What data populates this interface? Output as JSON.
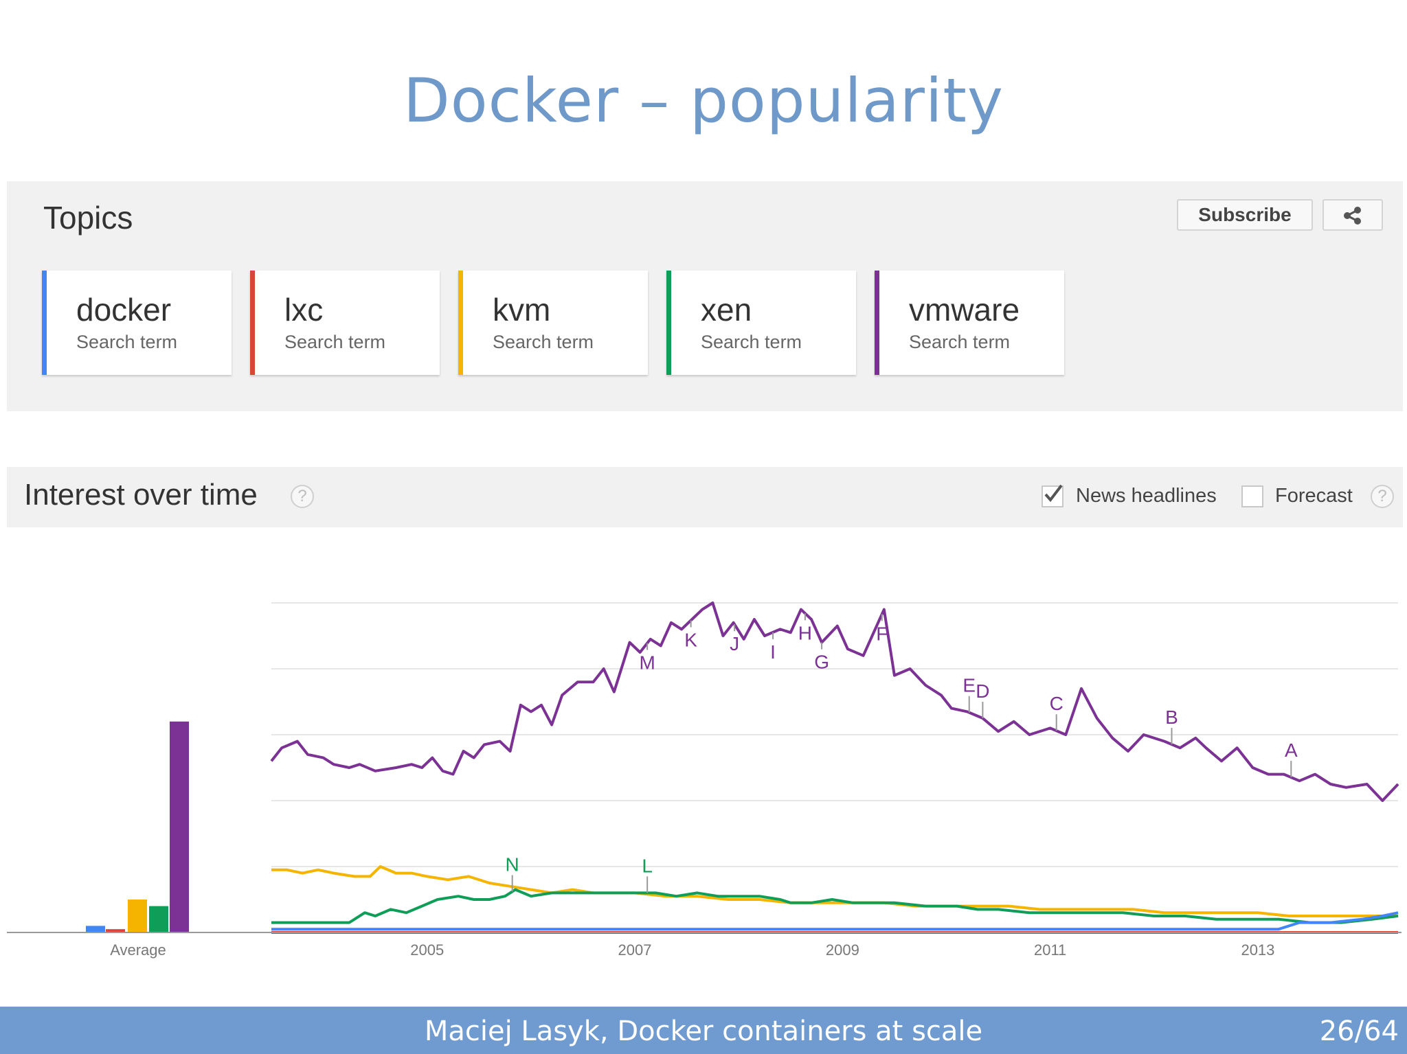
{
  "slide": {
    "title": "Docker – popularity",
    "footer": "Maciej Lasyk, Docker containers at scale",
    "page": "26/64"
  },
  "topics": {
    "heading": "Topics",
    "subscribe_label": "Subscribe",
    "share_icon": "share-icon",
    "terms": [
      {
        "name": "docker",
        "type": "Search term",
        "color": "#4285f4"
      },
      {
        "name": "lxc",
        "type": "Search term",
        "color": "#db4437"
      },
      {
        "name": "kvm",
        "type": "Search term",
        "color": "#f4b400"
      },
      {
        "name": "xen",
        "type": "Search term",
        "color": "#0f9d58"
      },
      {
        "name": "vmware",
        "type": "Search term",
        "color": "#7b3294"
      }
    ]
  },
  "interest": {
    "heading": "Interest over time",
    "help_icon": "?",
    "news_label": "News headlines",
    "news_checked": true,
    "forecast_label": "Forecast",
    "forecast_checked": false
  },
  "chart_data": {
    "type": "line",
    "x_range": [
      2004.0,
      2014.85
    ],
    "y_range": [
      0,
      100
    ],
    "grid": true,
    "x_ticks": [
      2005,
      2007,
      2009,
      2011,
      2013
    ],
    "average_label": "Average",
    "averages": [
      {
        "name": "docker",
        "value": 2,
        "color": "#4285f4"
      },
      {
        "name": "lxc",
        "value": 1,
        "color": "#db4437"
      },
      {
        "name": "kvm",
        "value": 10,
        "color": "#f4b400"
      },
      {
        "name": "xen",
        "value": 8,
        "color": "#0f9d58"
      },
      {
        "name": "vmware",
        "value": 64,
        "color": "#7b3294"
      }
    ],
    "series": [
      {
        "name": "vmware",
        "color": "#7b3294",
        "points": [
          [
            2004.0,
            52
          ],
          [
            2004.1,
            56
          ],
          [
            2004.25,
            58
          ],
          [
            2004.35,
            54
          ],
          [
            2004.5,
            53
          ],
          [
            2004.6,
            51
          ],
          [
            2004.75,
            50
          ],
          [
            2004.85,
            51
          ],
          [
            2005.0,
            49
          ],
          [
            2005.2,
            50
          ],
          [
            2005.35,
            51
          ],
          [
            2005.45,
            50
          ],
          [
            2005.55,
            53
          ],
          [
            2005.65,
            49
          ],
          [
            2005.75,
            48
          ],
          [
            2005.85,
            55
          ],
          [
            2005.95,
            53
          ],
          [
            2006.05,
            57
          ],
          [
            2006.2,
            58
          ],
          [
            2006.3,
            55
          ],
          [
            2006.4,
            69
          ],
          [
            2006.5,
            67
          ],
          [
            2006.6,
            69
          ],
          [
            2006.7,
            63
          ],
          [
            2006.8,
            72
          ],
          [
            2006.95,
            76
          ],
          [
            2007.1,
            76
          ],
          [
            2007.2,
            80
          ],
          [
            2007.3,
            73
          ],
          [
            2007.45,
            88
          ],
          [
            2007.55,
            85
          ],
          [
            2007.65,
            89
          ],
          [
            2007.75,
            87
          ],
          [
            2007.85,
            94
          ],
          [
            2007.95,
            92
          ],
          [
            2008.05,
            95
          ],
          [
            2008.15,
            98
          ],
          [
            2008.25,
            100
          ],
          [
            2008.35,
            90
          ],
          [
            2008.45,
            94
          ],
          [
            2008.55,
            89
          ],
          [
            2008.65,
            95
          ],
          [
            2008.75,
            90
          ],
          [
            2008.9,
            92
          ],
          [
            2009.0,
            91
          ],
          [
            2009.1,
            98
          ],
          [
            2009.2,
            95
          ],
          [
            2009.3,
            88
          ],
          [
            2009.45,
            93
          ],
          [
            2009.55,
            86
          ],
          [
            2009.7,
            84
          ],
          [
            2009.9,
            98
          ],
          [
            2010.0,
            78
          ],
          [
            2010.15,
            80
          ],
          [
            2010.3,
            75
          ],
          [
            2010.45,
            72
          ],
          [
            2010.55,
            68
          ],
          [
            2010.7,
            67
          ],
          [
            2010.85,
            65
          ],
          [
            2011.0,
            61
          ],
          [
            2011.15,
            64
          ],
          [
            2011.3,
            60
          ],
          [
            2011.5,
            62
          ],
          [
            2011.65,
            60
          ],
          [
            2011.8,
            74
          ],
          [
            2011.95,
            65
          ],
          [
            2012.1,
            59
          ],
          [
            2012.25,
            55
          ],
          [
            2012.4,
            60
          ],
          [
            2012.6,
            58
          ],
          [
            2012.75,
            56
          ],
          [
            2012.9,
            59
          ],
          [
            2013.0,
            56
          ],
          [
            2013.15,
            52
          ],
          [
            2013.3,
            56
          ],
          [
            2013.45,
            50
          ],
          [
            2013.6,
            48
          ],
          [
            2013.75,
            48
          ],
          [
            2013.9,
            46
          ],
          [
            2014.05,
            48
          ],
          [
            2014.2,
            45
          ],
          [
            2014.35,
            44
          ],
          [
            2014.55,
            45
          ],
          [
            2014.7,
            40
          ],
          [
            2014.85,
            45
          ]
        ]
      },
      {
        "name": "kvm",
        "color": "#f4b400",
        "points": [
          [
            2004.0,
            19
          ],
          [
            2004.15,
            19
          ],
          [
            2004.3,
            18
          ],
          [
            2004.45,
            19
          ],
          [
            2004.6,
            18
          ],
          [
            2004.8,
            17
          ],
          [
            2004.95,
            17
          ],
          [
            2005.05,
            20
          ],
          [
            2005.2,
            18
          ],
          [
            2005.35,
            18
          ],
          [
            2005.5,
            17
          ],
          [
            2005.7,
            16
          ],
          [
            2005.9,
            17
          ],
          [
            2006.1,
            15
          ],
          [
            2006.3,
            14
          ],
          [
            2006.5,
            13
          ],
          [
            2006.7,
            12
          ],
          [
            2006.9,
            13
          ],
          [
            2007.1,
            12
          ],
          [
            2007.3,
            12
          ],
          [
            2007.5,
            12
          ],
          [
            2007.8,
            11
          ],
          [
            2008.1,
            11
          ],
          [
            2008.4,
            10
          ],
          [
            2008.7,
            10
          ],
          [
            2009.0,
            9
          ],
          [
            2009.3,
            9
          ],
          [
            2009.6,
            9
          ],
          [
            2009.9,
            9
          ],
          [
            2010.2,
            8
          ],
          [
            2010.5,
            8
          ],
          [
            2010.8,
            8
          ],
          [
            2011.1,
            8
          ],
          [
            2011.4,
            7
          ],
          [
            2011.7,
            7
          ],
          [
            2012.0,
            7
          ],
          [
            2012.3,
            7
          ],
          [
            2012.6,
            6
          ],
          [
            2012.9,
            6
          ],
          [
            2013.2,
            6
          ],
          [
            2013.5,
            6
          ],
          [
            2013.8,
            5
          ],
          [
            2014.1,
            5
          ],
          [
            2014.4,
            5
          ],
          [
            2014.85,
            5
          ]
        ]
      },
      {
        "name": "xen",
        "color": "#0f9d58",
        "points": [
          [
            2004.0,
            3
          ],
          [
            2004.3,
            3
          ],
          [
            2004.6,
            3
          ],
          [
            2004.75,
            3
          ],
          [
            2004.9,
            6
          ],
          [
            2005.0,
            5
          ],
          [
            2005.15,
            7
          ],
          [
            2005.3,
            6
          ],
          [
            2005.45,
            8
          ],
          [
            2005.6,
            10
          ],
          [
            2005.8,
            11
          ],
          [
            2005.95,
            10
          ],
          [
            2006.1,
            10
          ],
          [
            2006.25,
            11
          ],
          [
            2006.35,
            13
          ],
          [
            2006.5,
            11
          ],
          [
            2006.7,
            12
          ],
          [
            2006.9,
            12
          ],
          [
            2007.1,
            12
          ],
          [
            2007.3,
            12
          ],
          [
            2007.5,
            12
          ],
          [
            2007.7,
            12
          ],
          [
            2007.9,
            11
          ],
          [
            2008.1,
            12
          ],
          [
            2008.3,
            11
          ],
          [
            2008.5,
            11
          ],
          [
            2008.7,
            11
          ],
          [
            2008.9,
            10
          ],
          [
            2009.0,
            9
          ],
          [
            2009.2,
            9
          ],
          [
            2009.4,
            10
          ],
          [
            2009.6,
            9
          ],
          [
            2009.8,
            9
          ],
          [
            2010.0,
            9
          ],
          [
            2010.3,
            8
          ],
          [
            2010.6,
            8
          ],
          [
            2010.8,
            7
          ],
          [
            2011.0,
            7
          ],
          [
            2011.3,
            6
          ],
          [
            2011.6,
            6
          ],
          [
            2011.9,
            6
          ],
          [
            2012.2,
            6
          ],
          [
            2012.5,
            5
          ],
          [
            2012.8,
            5
          ],
          [
            2013.1,
            4
          ],
          [
            2013.4,
            4
          ],
          [
            2013.7,
            4
          ],
          [
            2014.0,
            3
          ],
          [
            2014.3,
            3
          ],
          [
            2014.6,
            4
          ],
          [
            2014.85,
            5
          ]
        ]
      },
      {
        "name": "docker",
        "color": "#4285f4",
        "points": [
          [
            2004.0,
            1
          ],
          [
            2005.0,
            1
          ],
          [
            2007.0,
            1
          ],
          [
            2009.0,
            1
          ],
          [
            2011.0,
            1
          ],
          [
            2013.0,
            1
          ],
          [
            2013.7,
            1
          ],
          [
            2013.9,
            3
          ],
          [
            2014.2,
            3
          ],
          [
            2014.5,
            4
          ],
          [
            2014.7,
            5
          ],
          [
            2014.85,
            6
          ]
        ]
      },
      {
        "name": "lxc",
        "color": "#db4437",
        "points": [
          [
            2004.0,
            0
          ],
          [
            2014.85,
            0
          ]
        ]
      }
    ],
    "annotations": [
      {
        "label": "A",
        "x": 2013.82,
        "series": "vmware"
      },
      {
        "label": "B",
        "x": 2012.67,
        "series": "vmware"
      },
      {
        "label": "C",
        "x": 2011.56,
        "series": "vmware"
      },
      {
        "label": "D",
        "x": 2010.85,
        "series": "vmware"
      },
      {
        "label": "E",
        "x": 2010.72,
        "series": "vmware"
      },
      {
        "label": "F",
        "x": 2009.88,
        "series": "vmware"
      },
      {
        "label": "G",
        "x": 2009.3,
        "series": "vmware"
      },
      {
        "label": "H",
        "x": 2009.14,
        "series": "vmware"
      },
      {
        "label": "I",
        "x": 2008.83,
        "series": "vmware"
      },
      {
        "label": "J",
        "x": 2008.46,
        "series": "vmware"
      },
      {
        "label": "K",
        "x": 2008.04,
        "series": "vmware"
      },
      {
        "label": "L",
        "x": 2007.62,
        "series": "xen"
      },
      {
        "label": "M",
        "x": 2007.62,
        "series": "vmware"
      },
      {
        "label": "N",
        "x": 2006.32,
        "series": "xen"
      }
    ]
  }
}
